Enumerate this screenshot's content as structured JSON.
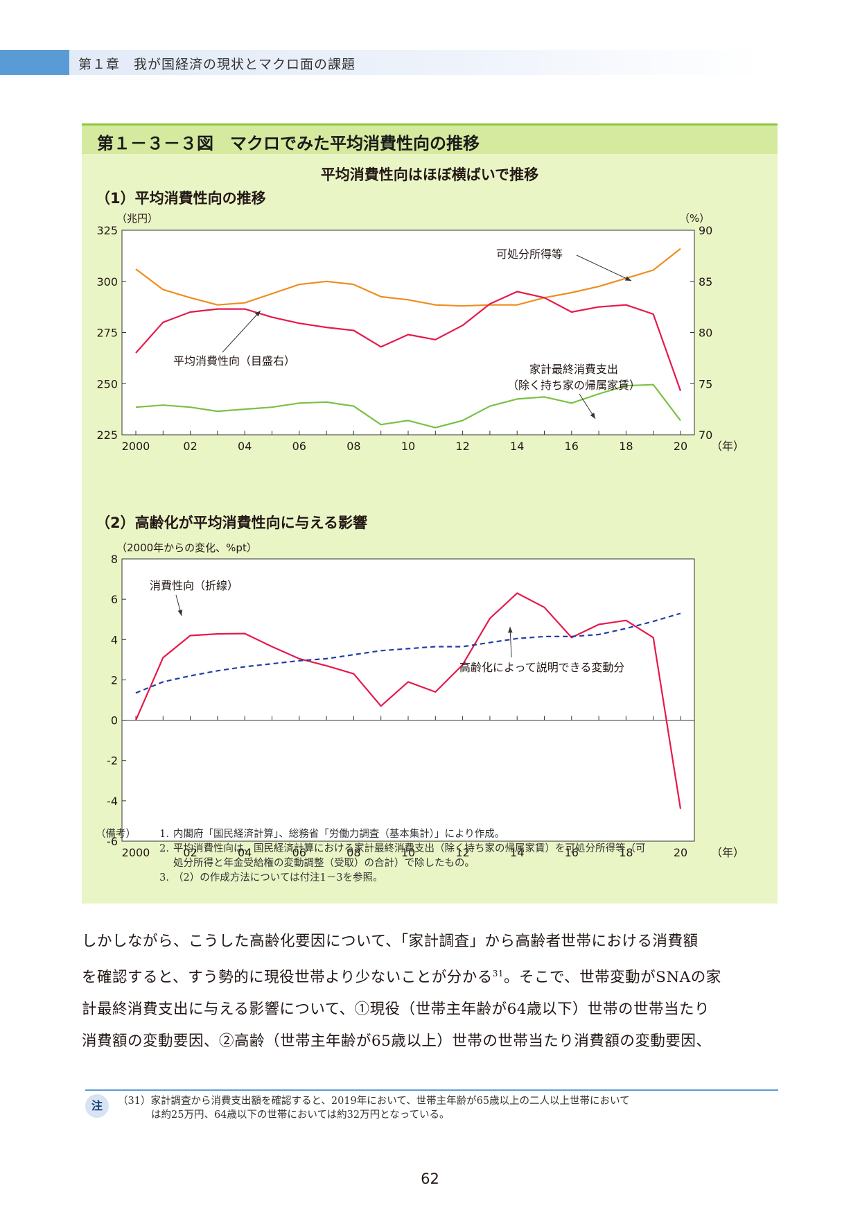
{
  "header": {
    "chapter": "第１章　我が国経済の現状とマクロ面の課題"
  },
  "figure": {
    "title": "第１－３－３図　マクロでみた平均消費性向の推移",
    "subtitle": "平均消費性向はほぼ横ばいで推移",
    "section1": "（1）平均消費性向の推移",
    "section2": "（2）高齢化が平均消費性向に与える影響",
    "notes": [
      {
        "key": "（備考）",
        "num": "1.",
        "text": "内閣府「国民経済計算」、総務省「労働力調査（基本集計）」により作成。"
      },
      {
        "key": "",
        "num": "2.",
        "text": "平均消費性向は、国民経済計算における家計最終消費支出（除く持ち家の帰属家賃）を可処分所得等（可"
      },
      {
        "key": "",
        "num": "",
        "text": "処分所得と年金受給権の変動調整（受取）の合計）で除したもの。"
      },
      {
        "key": "",
        "num": "3.",
        "text": "（2）の作成方法については付注1－3を参照。"
      }
    ]
  },
  "chart_data": [
    {
      "type": "line",
      "title": "（1）平均消費性向の推移",
      "y_left_unit": "（兆円）",
      "y_right_unit": "（%）",
      "x_unit": "（年）",
      "x": [
        2000,
        2001,
        2002,
        2003,
        2004,
        2005,
        2006,
        2007,
        2008,
        2009,
        2010,
        2011,
        2012,
        2013,
        2014,
        2015,
        2016,
        2017,
        2018,
        2019,
        2020
      ],
      "x_tick_labels": [
        "2000",
        "02",
        "04",
        "06",
        "08",
        "10",
        "12",
        "14",
        "16",
        "18",
        "20"
      ],
      "ylim_left": [
        225,
        325
      ],
      "yticks_left": [
        325,
        300,
        275,
        250,
        225
      ],
      "ylim_right": [
        70,
        90
      ],
      "yticks_right": [
        90,
        85,
        80,
        75,
        70
      ],
      "series": [
        {
          "name": "可処分所得等",
          "axis": "left",
          "color": "#f08c1e",
          "values": [
            306,
            296,
            292,
            288.5,
            289.5,
            294,
            298.5,
            300,
            298.5,
            292.5,
            291,
            288.5,
            288,
            288.5,
            288.5,
            292,
            294.5,
            297.5,
            301.5,
            305.5,
            316
          ]
        },
        {
          "name": "家計最終消費支出（除く持ち家の帰属家賃）",
          "axis": "left",
          "color": "#7ac143",
          "values": [
            238.5,
            239.5,
            238.5,
            236.5,
            237.5,
            238.5,
            240.5,
            241,
            239,
            230,
            232,
            228.5,
            232,
            239,
            242.5,
            243.5,
            240.5,
            245,
            249,
            249.5,
            232
          ]
        },
        {
          "name": "平均消費性向（目盛右）",
          "axis": "right",
          "color": "#e6194b",
          "values": [
            78,
            81,
            82,
            82.3,
            82.3,
            81.5,
            80.9,
            80.5,
            80.2,
            78.6,
            79.8,
            79.3,
            80.7,
            82.8,
            84,
            83.4,
            82,
            82.5,
            82.7,
            81.8,
            74.3
          ]
        }
      ],
      "annotations": [
        "可処分所得等",
        "平均消費性向（目盛右）",
        "家計最終消費支出",
        "（除く持ち家の帰属家賃）"
      ],
      "grid": false
    },
    {
      "type": "line",
      "title": "（2）高齢化が平均消費性向に与える影響",
      "y_unit": "（2000年からの変化、%pt）",
      "x_unit": "（年）",
      "x": [
        2000,
        2001,
        2002,
        2003,
        2004,
        2005,
        2006,
        2007,
        2008,
        2009,
        2010,
        2011,
        2012,
        2013,
        2014,
        2015,
        2016,
        2017,
        2018,
        2019,
        2020
      ],
      "x_tick_labels": [
        "2000",
        "02",
        "04",
        "06",
        "08",
        "10",
        "12",
        "14",
        "16",
        "18",
        "20"
      ],
      "ylim": [
        -6,
        8
      ],
      "yticks": [
        8,
        6,
        4,
        2,
        0,
        -2,
        -4,
        -6
      ],
      "series": [
        {
          "name": "消費性向（折線）",
          "color": "#e6194b",
          "dashed": false,
          "values": [
            0,
            3.1,
            4.2,
            4.28,
            4.3,
            3.65,
            3.05,
            2.7,
            2.3,
            0.7,
            1.9,
            1.4,
            2.75,
            5.05,
            6.3,
            5.6,
            4.1,
            4.75,
            4.95,
            4.1,
            -4.4
          ]
        },
        {
          "name": "高齢化によって説明できる変動分",
          "color": "#1f3fa6",
          "dashed": true,
          "values": [
            1.35,
            1.9,
            2.2,
            2.45,
            2.65,
            2.8,
            2.95,
            3.05,
            3.25,
            3.45,
            3.55,
            3.65,
            3.65,
            3.85,
            4.05,
            4.15,
            4.15,
            4.25,
            4.55,
            4.9,
            5.3
          ]
        }
      ],
      "annotations": [
        "消費性向（折線）",
        "高齢化によって説明できる変動分"
      ],
      "grid": false
    }
  ],
  "body": {
    "p1a": "しかしながら、こうした高齢化要因について、「家計調査」から高齢者世帯における消費額",
    "p1b": "を確認すると、すう勢的に現役世帯より少ないことが分かる",
    "p1b_ref": "31",
    "p1c": "。そこで、世帯変動がSNAの家",
    "p2": "計最終消費支出に与える影響について、①現役（世帯主年齢が64歳以下）世帯の世帯当たり",
    "p3": "消費額の変動要因、②高齢（世帯主年齢が65歳以上）世帯の世帯当たり消費額の変動要因、"
  },
  "footnote": {
    "badge": "注",
    "line1": "（31）家計調査から消費支出額を確認すると、2019年において、世帯主年齢が65歳以上の二人以上世帯において",
    "line2": "は約25万円、64歳以下の世帯においては約32万円となっている。"
  },
  "page_number": "62"
}
